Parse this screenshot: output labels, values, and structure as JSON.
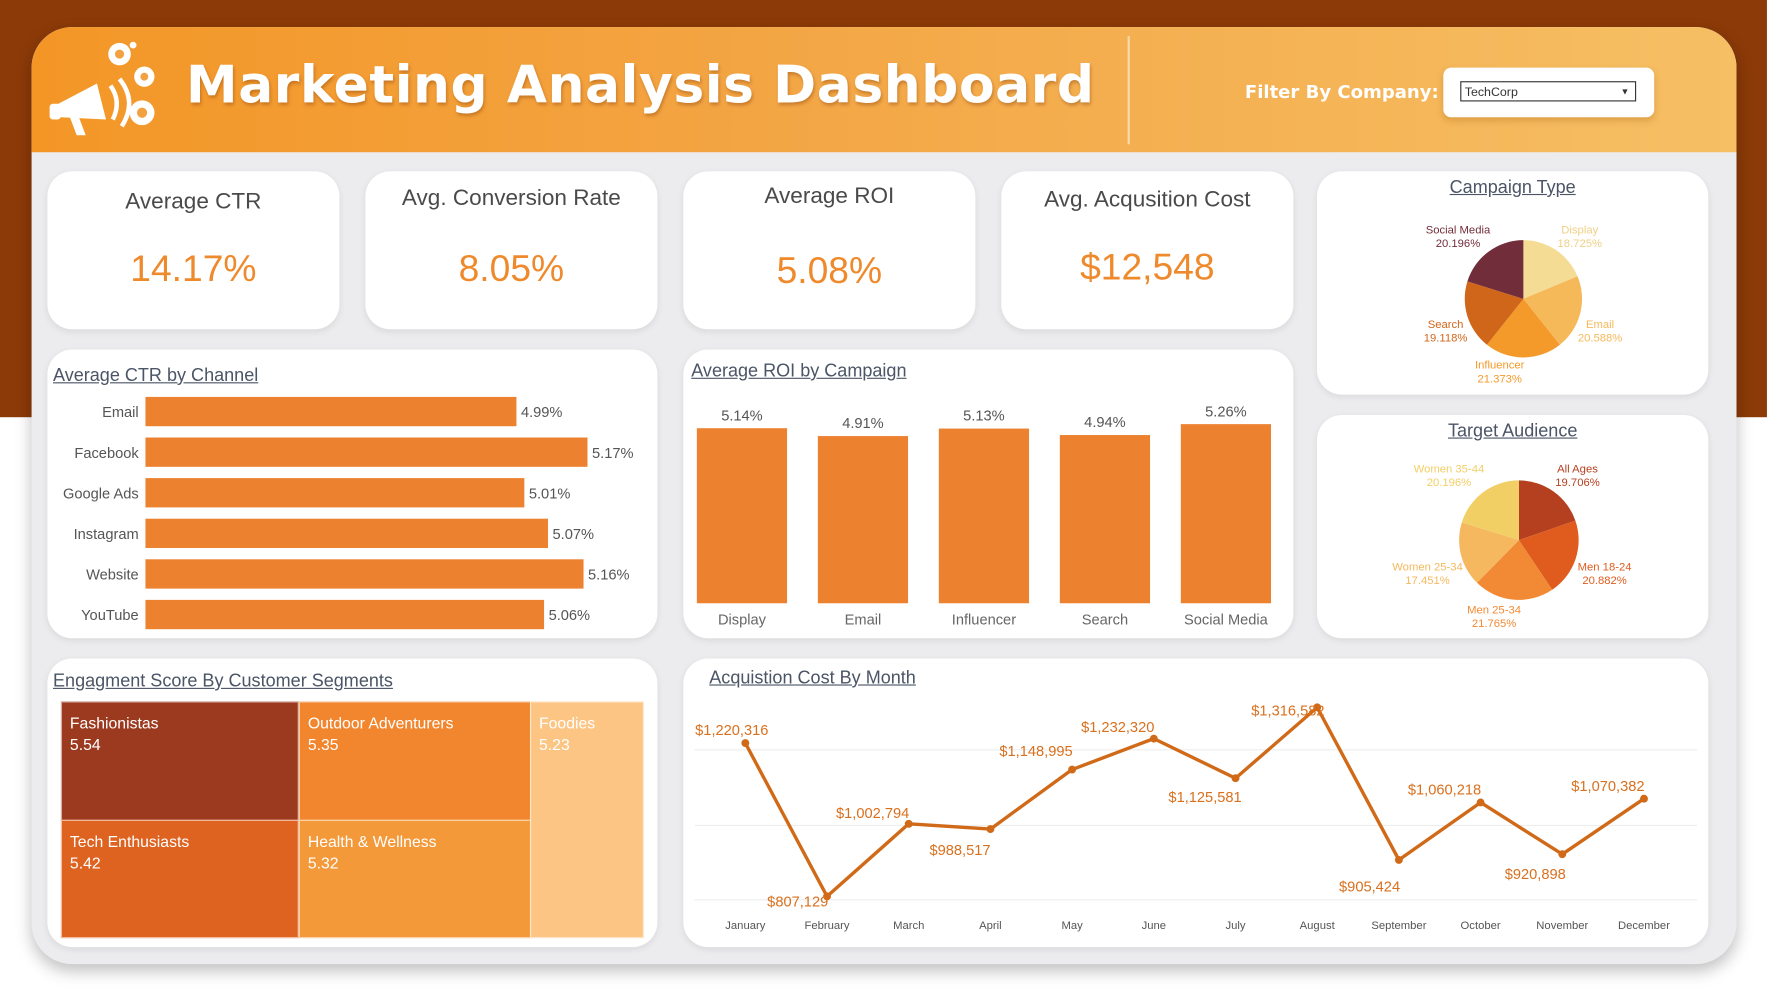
{
  "header": {
    "title": "Marketing Analysis Dashboard",
    "filter_label": "Filter By Company:",
    "filter_value": "TechCorp",
    "logo_icon": "megaphone-icon"
  },
  "kpis": [
    {
      "label": "Average CTR",
      "value": "14.17%"
    },
    {
      "label": "Avg. Conversion Rate",
      "value": "8.05%"
    },
    {
      "label": "Average ROI",
      "value": "5.08%"
    },
    {
      "label": "Avg. Acqusition Cost",
      "value": "$12,548"
    }
  ],
  "colors": {
    "accent": "#ef8a2c",
    "bar": "#ec8130",
    "line": "#d06a18",
    "header_dark": "#8c3a08"
  },
  "chart_data": [
    {
      "type": "bar",
      "orientation": "horizontal",
      "title": "Average CTR by Channel",
      "categories": [
        "Email",
        "Facebook",
        "Google Ads",
        "Instagram",
        "Website",
        "YouTube"
      ],
      "values": [
        4.99,
        5.17,
        5.01,
        5.07,
        5.16,
        5.06
      ],
      "labels": [
        "4.99%",
        "5.17%",
        "5.01%",
        "5.07%",
        "5.16%",
        "5.06%"
      ]
    },
    {
      "type": "bar",
      "title": "Average ROI by Campaign",
      "categories": [
        "Display",
        "Email",
        "Influencer",
        "Search",
        "Social Media"
      ],
      "values": [
        5.14,
        4.91,
        5.13,
        4.94,
        5.26
      ],
      "labels": [
        "5.14%",
        "4.91%",
        "5.13%",
        "4.94%",
        "5.26%"
      ]
    },
    {
      "type": "pie",
      "title": "Campaign Type",
      "slices": [
        {
          "name": "Display",
          "value": 18.725,
          "label": "18.725%",
          "color": "#f5dc95"
        },
        {
          "name": "Email",
          "value": 20.588,
          "label": "20.588%",
          "color": "#f5b95a"
        },
        {
          "name": "Influencer",
          "value": 21.373,
          "label": "21.373%",
          "color": "#f39a2a"
        },
        {
          "name": "Search",
          "value": 19.118,
          "label": "19.118%",
          "color": "#d0661a"
        },
        {
          "name": "Social Media",
          "value": 20.196,
          "label": "20.196%",
          "color": "#722d3a"
        }
      ]
    },
    {
      "type": "pie",
      "title": "Target Audience",
      "slices": [
        {
          "name": "All Ages",
          "value": 19.706,
          "label": "19.706%",
          "color": "#b5401f"
        },
        {
          "name": "Men 18-24",
          "value": 20.882,
          "label": "20.882%",
          "color": "#df5c1e"
        },
        {
          "name": "Men 25-34",
          "value": 21.765,
          "label": "21.765%",
          "color": "#f28a35"
        },
        {
          "name": "Women 25-34",
          "value": 17.451,
          "label": "17.451%",
          "color": "#f6b85e"
        },
        {
          "name": "Women 35-44",
          "value": 20.196,
          "label": "20.196%",
          "color": "#f2cf65"
        }
      ]
    },
    {
      "type": "heatmap",
      "subtype": "treemap",
      "title": "Engagment Score By Customer Segments",
      "items": [
        {
          "name": "Fashionistas",
          "value": "5.54",
          "color": "#9c3a20"
        },
        {
          "name": "Tech Enthusiasts",
          "value": "5.42",
          "color": "#de6220"
        },
        {
          "name": "Outdoor Adventurers",
          "value": "5.35",
          "color": "#f2862e"
        },
        {
          "name": "Health & Wellness",
          "value": "5.32",
          "color": "#f4993a"
        },
        {
          "name": "Foodies",
          "value": "5.23",
          "color": "#fdc583"
        }
      ]
    },
    {
      "type": "line",
      "title": "Acquistion Cost By Month",
      "x": [
        "January",
        "February",
        "March",
        "April",
        "May",
        "June",
        "July",
        "August",
        "September",
        "October",
        "November",
        "December"
      ],
      "values": [
        1220316,
        807129,
        1002794,
        988517,
        1148995,
        1232320,
        1125581,
        1316582,
        905424,
        1060218,
        920898,
        1070382
      ],
      "labels": [
        "$1,220,316",
        "$807,129",
        "$1,002,794",
        "$988,517",
        "$1,148,995",
        "$1,232,320",
        "$1,125,581",
        "$1,316,582",
        "$905,424",
        "$1,060,218",
        "$920,898",
        "$1,070,382"
      ],
      "grid": true
    }
  ]
}
